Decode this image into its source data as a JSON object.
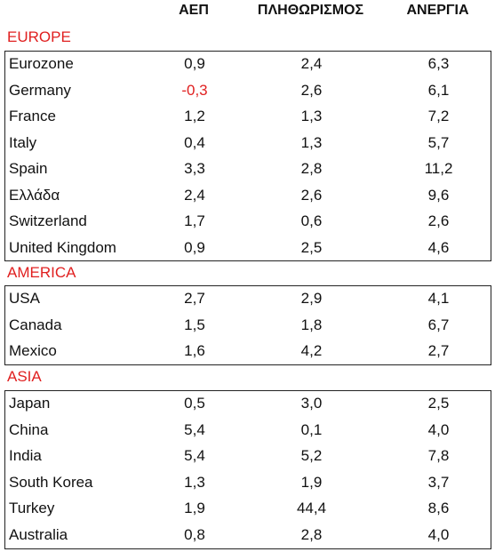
{
  "headers": {
    "gdp": "ΑΕΠ",
    "inflation": "ΠΛΗΘΩΡΙΣΜΟΣ",
    "unemployment": "ΑΝΕΡΓΙΑ"
  },
  "regions": [
    {
      "name": "EUROPE",
      "rows": [
        {
          "country": "Eurozone",
          "gdp": "0,9",
          "inflation": "2,4",
          "unemployment": "6,3"
        },
        {
          "country": "Germany",
          "gdp": "-0,3",
          "inflation": "2,6",
          "unemployment": "6,1"
        },
        {
          "country": "France",
          "gdp": "1,2",
          "inflation": "1,3",
          "unemployment": "7,2"
        },
        {
          "country": "Italy",
          "gdp": "0,4",
          "inflation": "1,3",
          "unemployment": "5,7"
        },
        {
          "country": "Spain",
          "gdp": "3,3",
          "inflation": "2,8",
          "unemployment": "11,2"
        },
        {
          "country": "Ελλάδα",
          "gdp": "2,4",
          "inflation": "2,6",
          "unemployment": "9,6"
        },
        {
          "country": "Switzerland",
          "gdp": "1,7",
          "inflation": "0,6",
          "unemployment": "2,6"
        },
        {
          "country": "United Kingdom",
          "gdp": "0,9",
          "inflation": "2,5",
          "unemployment": "4,6"
        }
      ]
    },
    {
      "name": "AMERICA",
      "rows": [
        {
          "country": "USA",
          "gdp": "2,7",
          "inflation": "2,9",
          "unemployment": "4,1"
        },
        {
          "country": "Canada",
          "gdp": "1,5",
          "inflation": "1,8",
          "unemployment": "6,7"
        },
        {
          "country": "Mexico",
          "gdp": "1,6",
          "inflation": "4,2",
          "unemployment": "2,7"
        }
      ]
    },
    {
      "name": "ASIA",
      "rows": [
        {
          "country": "Japan",
          "gdp": "0,5",
          "inflation": "3,0",
          "unemployment": "2,5"
        },
        {
          "country": "China",
          "gdp": "5,4",
          "inflation": "0,1",
          "unemployment": "4,0"
        },
        {
          "country": "India",
          "gdp": "5,4",
          "inflation": "5,2",
          "unemployment": "7,8"
        },
        {
          "country": "South Korea",
          "gdp": "1,3",
          "inflation": "1,9",
          "unemployment": "3,7"
        },
        {
          "country": "Turkey",
          "gdp": "1,9",
          "inflation": "44,4",
          "unemployment": "8,6"
        },
        {
          "country": "Australia",
          "gdp": "0,8",
          "inflation": "2,8",
          "unemployment": "4,0"
        }
      ]
    }
  ],
  "colors": {
    "region_label": "#e02020",
    "negative_value": "#e02020",
    "text": "#111111",
    "border": "#222222"
  }
}
